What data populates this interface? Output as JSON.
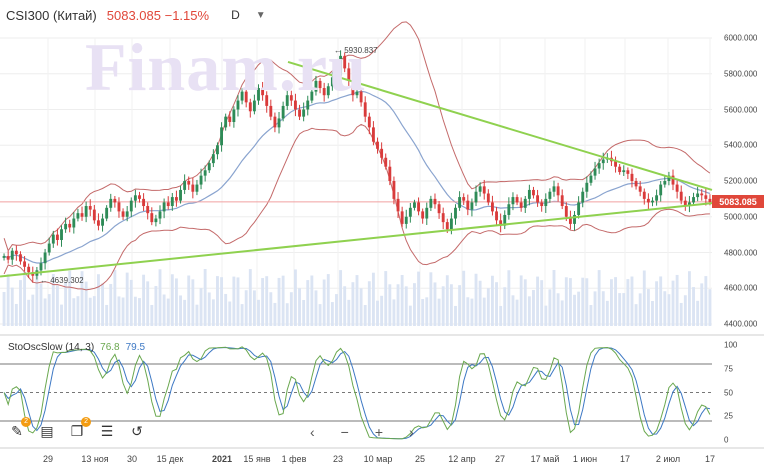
{
  "header": {
    "symbol": "CSI300 (Китай)",
    "price_change": "5083.085 −1.15%",
    "timeframe": "D",
    "dropdown_icon": "caret-down-icon"
  },
  "watermark": "Finam.ru",
  "current_price_label": "5083.085",
  "annotations": {
    "high": "5930.837",
    "low": "4639.302"
  },
  "indicator": {
    "name": "StoOscSlow (14, 3)",
    "k_value": "76.8",
    "d_value": "79.5"
  },
  "toolbar": {
    "draw_badge": "2",
    "layers_badge": "2",
    "icons": [
      "pencil-icon",
      "ruler-icon",
      "layers-icon",
      "tune-icon",
      "undo-icon"
    ]
  },
  "nav": {
    "prev": "‹",
    "zoom_out": "−",
    "zoom_in": "+",
    "next": "›"
  },
  "colors": {
    "up": "#2e8b57",
    "down": "#d93b3b",
    "bollinger": "#c46a6a",
    "ma": "#8aa4cf",
    "trend": "#8fd14f",
    "stoch_k": "#6aa84f",
    "stoch_d": "#3d78c4"
  },
  "chart_data": {
    "type": "candlestick",
    "price_axis": {
      "min": 4400,
      "max": 6000,
      "ticks": [
        "6000.000",
        "5800.000",
        "5600.000",
        "5400.000",
        "5200.000",
        "5000.000",
        "4800.000",
        "4600.000",
        "4400.000"
      ]
    },
    "x_ticks": [
      "29",
      "13 ноя",
      "30",
      "15 дек",
      "2021",
      "15 янв",
      "1 фев",
      "23",
      "10 мар",
      "25",
      "12 апр",
      "27",
      "17 май",
      "1 июн",
      "17",
      "2 июл",
      "17"
    ],
    "closes": [
      4780,
      4760,
      4810,
      4790,
      4750,
      4720,
      4690,
      4670,
      4700,
      4740,
      4800,
      4850,
      4900,
      4870,
      4930,
      4960,
      4940,
      4990,
      5020,
      5000,
      5060,
      5040,
      4980,
      4950,
      4990,
      5050,
      5100,
      5080,
      5030,
      5000,
      5030,
      5090,
      5120,
      5100,
      5060,
      5020,
      4970,
      4990,
      5030,
      5080,
      5060,
      5110,
      5090,
      5150,
      5200,
      5180,
      5140,
      5180,
      5230,
      5260,
      5300,
      5350,
      5400,
      5500,
      5560,
      5530,
      5600,
      5650,
      5700,
      5640,
      5590,
      5650,
      5720,
      5680,
      5620,
      5560,
      5500,
      5550,
      5620,
      5680,
      5650,
      5600,
      5560,
      5600,
      5650,
      5700,
      5760,
      5720,
      5680,
      5730,
      5780,
      5790,
      5900,
      5830,
      5760,
      5680,
      5700,
      5640,
      5560,
      5500,
      5420,
      5380,
      5330,
      5280,
      5200,
      5100,
      5030,
      4960,
      5000,
      5050,
      5080,
      5030,
      4990,
      5050,
      5100,
      5070,
      5020,
      4970,
      4930,
      4990,
      5050,
      5110,
      5090,
      5040,
      5080,
      5140,
      5170,
      5130,
      5080,
      5030,
      4980,
      4950,
      5010,
      5070,
      5110,
      5080,
      5050,
      5100,
      5150,
      5120,
      5080,
      5060,
      5100,
      5140,
      5170,
      5120,
      5060,
      5000,
      4960,
      5010,
      5080,
      5140,
      5190,
      5230,
      5270,
      5300,
      5320,
      5330,
      5310,
      5280,
      5250,
      5260,
      5240,
      5200,
      5170,
      5140,
      5100,
      5080,
      5090,
      5120,
      5180,
      5200,
      5230,
      5180,
      5140,
      5090,
      5060,
      5080,
      5110,
      5130,
      5120,
      5100,
      5083
    ],
    "support_line": [
      [
        0,
        4666
      ],
      [
        712,
        5076
      ]
    ],
    "resistance_line": [
      [
        288,
        5866
      ],
      [
        712,
        5150
      ]
    ],
    "horizontal_level": 5083,
    "volume_max": 100,
    "stochastic": {
      "k_name": "%K 76.8",
      "d_name": "%D 79.5",
      "levels": [
        20,
        50,
        80
      ],
      "axis_ticks": [
        "100",
        "75",
        "50",
        "25",
        "0"
      ]
    }
  }
}
